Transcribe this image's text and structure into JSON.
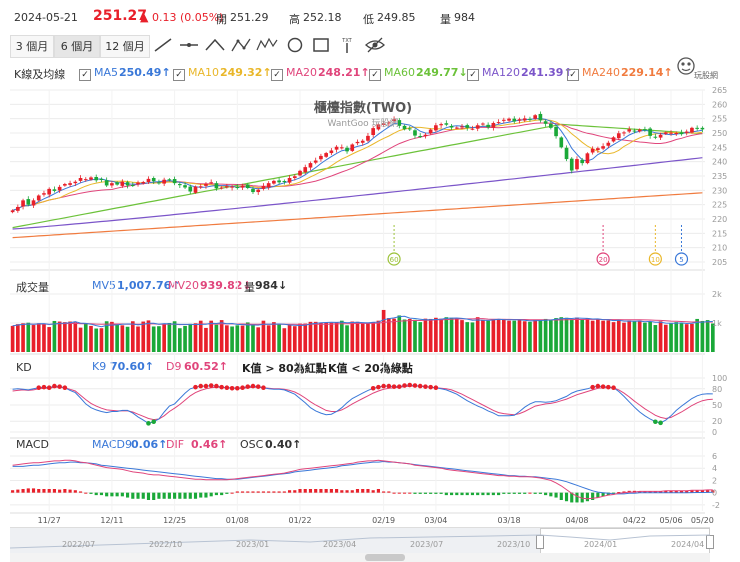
{
  "quote": {
    "date": "2024-05-21",
    "price": "251.27",
    "change": "▲ 0.13 (0.05%)",
    "open_label": "開",
    "open": "251.29",
    "high_label": "高",
    "high": "252.18",
    "low_label": "低",
    "low": "249.85",
    "vol_label": "量",
    "vol": "984"
  },
  "toolbar": {
    "ranges": [
      "3 個月",
      "6 個月",
      "12 個月"
    ],
    "active_range": "6 個月",
    "tools": [
      "line-tool-icon",
      "horizontal-line-icon",
      "angle-tool-icon",
      "abc-pattern-icon",
      "abcde-pattern-icon",
      "circle-tool-icon",
      "rectangle-tool-icon",
      "text-tool-icon",
      "hide-icon"
    ],
    "text_tool_caption": "TXT"
  },
  "ma_legend": {
    "title": "K線及均線",
    "items": [
      {
        "label": "MA5",
        "value": "250.49↑",
        "color": "#3a78d8"
      },
      {
        "label": "MA10",
        "value": "249.32↑",
        "color": "#e9b72a"
      },
      {
        "label": "MA20",
        "value": "248.21↑",
        "color": "#e0457b"
      },
      {
        "label": "MA60",
        "value": "249.77↓",
        "color": "#6cc23a"
      },
      {
        "label": "MA120",
        "value": "241.39↑",
        "color": "#7b55c9"
      },
      {
        "label": "MA240",
        "value": "229.14↑",
        "color": "#f07b3f"
      }
    ]
  },
  "volume_legend": {
    "title": "成交量",
    "items": [
      {
        "label": "MV5",
        "value": "1,007.76↑",
        "color": "#3a78d8"
      },
      {
        "label": "MV20",
        "value": "939.82↓",
        "color": "#e0457b"
      },
      {
        "label": "量",
        "value": "984↓",
        "color": "#333333"
      }
    ]
  },
  "kd_legend": {
    "title": "KD",
    "items": [
      {
        "label": "K9",
        "value": "70.60↑",
        "color": "#3a78d8"
      },
      {
        "label": "D9",
        "value": "60.52↑",
        "color": "#e0457b"
      }
    ],
    "note1": "K值 > 80為紅點",
    "note2": "K值 < 20為綠點"
  },
  "macd_legend": {
    "title": "MACD",
    "items": [
      {
        "label": "MACD9",
        "value": "0.06↑",
        "color": "#3a78d8"
      },
      {
        "label": "DIF",
        "value": "0.46↑",
        "color": "#e0457b"
      },
      {
        "label": "OSC",
        "value": "0.40↑",
        "color": "#333333"
      }
    ]
  },
  "watermark": {
    "title": "櫃檯指數(TWO)",
    "subtitle": "WantGoo 玩股網",
    "logo_text": "玩股網"
  },
  "markers": [
    "60",
    "20",
    "10",
    "5"
  ],
  "navigator": [
    "2022/07",
    "2022/10",
    "2023/01",
    "2023/04",
    "2023/07",
    "2023/10",
    "2024/01",
    "2024/04"
  ],
  "colors": {
    "up": "#e8202a",
    "down": "#1aa838",
    "grid": "#ececec",
    "axis": "#999999"
  },
  "chart_data": {
    "type": "candlestick",
    "x_labels": [
      "11/27",
      "12/11",
      "12/25",
      "01/08",
      "01/22",
      "02/19",
      "03/04",
      "03/18",
      "04/08",
      "04/22",
      "05/06",
      "05/20"
    ],
    "price_axis": {
      "ticks": [
        205,
        210,
        215,
        220,
        225,
        230,
        235,
        240,
        245,
        250,
        255,
        260,
        265
      ],
      "ylim": [
        205,
        265
      ]
    },
    "volume_axis": {
      "ticks": [
        "1k",
        "2k"
      ],
      "ylim": [
        0,
        2000
      ]
    },
    "kd_axis": {
      "ticks": [
        0,
        20,
        50,
        80,
        100
      ],
      "ylim": [
        0,
        100
      ]
    },
    "macd_axis": {
      "ticks": [
        -2,
        0,
        2,
        4,
        6
      ],
      "ylim": [
        -3,
        6
      ]
    },
    "closes": [
      223,
      224.2,
      226.5,
      225,
      226.5,
      228.2,
      229,
      230.5,
      229.8,
      231.2,
      232.2,
      232.5,
      233,
      234.3,
      233.9,
      234.5,
      233.5,
      233.8,
      231.7,
      232.5,
      232,
      233,
      231.7,
      231.7,
      232.7,
      232.9,
      234,
      233.2,
      232.5,
      233.7,
      233.5,
      232.5,
      231.8,
      231,
      229.6,
      231.3,
      231.4,
      232.3,
      232.8,
      230.7,
      231,
      231.4,
      231.3,
      230.8,
      231.6,
      230.8,
      229.4,
      230.2,
      231.5,
      232.5,
      233.3,
      232.8,
      233,
      234.3,
      234.9,
      236.8,
      238.1,
      239.5,
      240.4,
      242,
      243,
      243.9,
      245.2,
      245,
      243.6,
      246,
      246.9,
      247.3,
      249,
      251.7,
      253,
      253.3,
      253.7,
      254.8,
      252.5,
      251.3,
      251.4,
      249.1,
      248.8,
      249.4,
      251.2,
      252.7,
      253.1,
      252.9,
      251.9,
      251.9,
      252.3,
      251.8,
      251.5,
      252.7,
      253.3,
      252,
      253.5,
      253.8,
      254.6,
      255,
      254,
      254.8,
      255.1,
      254.8,
      256.2,
      254.4,
      253.2,
      251.8,
      248.9,
      245,
      240.9,
      236.9,
      240.9,
      239.5,
      242.9,
      244.5,
      244.7,
      245.4,
      246.6,
      248.5,
      249.9,
      250.2,
      251.3,
      250.7,
      251.2,
      251.1,
      249,
      248.4,
      249.4,
      250.2,
      250.1,
      250,
      249.6,
      250.5,
      251.8,
      251.5,
      251.27
    ],
    "volumes": [
      900,
      960,
      990,
      1010,
      930,
      990,
      970,
      860,
      1070,
      1050,
      1030,
      1050,
      1020,
      840,
      990,
      900,
      810,
      820,
      1060,
      1040,
      940,
      920,
      870,
      1060,
      880,
      1050,
      1090,
      880,
      890,
      980,
      1000,
      1060,
      820,
      900,
      970,
      990,
      1080,
      830,
      1080,
      940,
      1100,
      920,
      880,
      920,
      910,
      1020,
      930,
      850,
      1080,
      920,
      1030,
      950,
      820,
      930,
      890,
      980,
      980,
      1040,
      1040,
      1010,
      1020,
      1010,
      1030,
      1080,
      920,
      1050,
      1040,
      980,
      1020,
      1030,
      1080,
      1450,
      1170,
      1150,
      1260,
      1120,
      1140,
      1110,
      1030,
      1150,
      1140,
      1180,
      1150,
      1200,
      1180,
      1160,
      1100,
      1030,
      1020,
      1200,
      1110,
      1080,
      1130,
      1130,
      1140,
      1080,
      1080,
      1100,
      1060,
      1040,
      1120,
      1110,
      1140,
      1100,
      1170,
      1200,
      1180,
      1130,
      1190,
      1120,
      1170,
      1080,
      1140,
      1080,
      1090,
      1030,
      1120,
      1010,
      1080,
      1050,
      1080,
      1010,
      1050,
      930,
      1060,
      940,
      980,
      1030,
      1010,
      960,
      970,
      1140,
      1070,
      1100,
      984
    ],
    "k9": [
      79,
      80,
      79,
      78,
      80,
      82,
      83,
      82,
      85,
      84,
      82,
      77,
      73,
      63,
      52,
      45,
      41,
      38,
      36,
      38,
      38,
      40,
      40,
      35,
      28,
      22,
      16,
      19,
      24,
      37,
      48,
      52,
      62,
      72,
      80,
      83,
      85,
      85,
      86,
      85,
      83,
      82,
      81,
      81,
      82,
      84,
      85,
      84,
      82,
      80,
      79,
      79,
      78,
      74,
      70,
      62,
      54,
      45,
      39,
      35,
      32,
      33,
      38,
      45,
      54,
      62,
      67,
      72,
      77,
      81,
      83,
      85,
      85,
      84,
      84,
      86,
      87,
      86,
      85,
      84,
      83,
      82,
      80,
      78,
      74,
      70,
      64,
      58,
      53,
      48,
      44,
      39,
      35,
      30,
      30,
      30,
      31,
      38,
      46,
      52,
      56,
      56,
      55,
      56,
      58,
      62,
      66,
      72,
      76,
      78,
      80,
      83,
      85,
      84,
      83,
      82,
      75,
      66,
      56,
      46,
      37,
      30,
      24,
      19,
      17,
      22,
      30,
      40,
      48,
      55,
      62,
      67,
      70,
      71,
      70.6
    ],
    "d9": [
      76,
      77,
      78,
      77,
      78,
      80,
      81,
      81,
      83,
      83,
      82,
      79,
      76,
      68,
      60,
      53,
      48,
      44,
      41,
      40,
      39,
      39,
      39,
      37,
      33,
      29,
      25,
      23,
      24,
      30,
      38,
      44,
      51,
      59,
      67,
      73,
      77,
      80,
      82,
      83,
      83,
      82,
      82,
      81,
      81,
      82,
      83,
      83,
      82,
      81,
      80,
      80,
      79,
      77,
      74,
      69,
      63,
      56,
      50,
      45,
      40,
      38,
      38,
      41,
      46,
      52,
      57,
      62,
      67,
      72,
      76,
      79,
      81,
      82,
      83,
      84,
      85,
      85,
      85,
      84,
      83,
      82,
      81,
      80,
      78,
      74,
      70,
      65,
      60,
      55,
      50,
      45,
      40,
      36,
      34,
      33,
      32,
      34,
      38,
      43,
      48,
      50,
      52,
      53,
      55,
      58,
      61,
      65,
      69,
      72,
      75,
      78,
      81,
      82,
      82,
      82,
      78,
      72,
      65,
      57,
      50,
      43,
      37,
      31,
      27,
      25,
      27,
      32,
      37,
      43,
      49,
      54,
      58,
      60,
      60.52
    ],
    "macd9": [
      4.3,
      4.3,
      4.3,
      4.4,
      4.5,
      4.5,
      4.6,
      4.7,
      4.8,
      4.9,
      4.9,
      5,
      5,
      4.9,
      4.9,
      4.8,
      4.7,
      4.5,
      4.4,
      4.3,
      4.2,
      4.1,
      4,
      3.9,
      3.8,
      3.7,
      3.6,
      3.5,
      3.4,
      3.3,
      3.2,
      3.1,
      3,
      2.9,
      2.8,
      2.7,
      2.6,
      2.5,
      2.4,
      2.3,
      2.3,
      2.2,
      2.2,
      2.2,
      2.3,
      2.4,
      2.5,
      2.6,
      2.7,
      2.8,
      2.9,
      3,
      3.1,
      3.2,
      3.4,
      3.5,
      3.6,
      3.7,
      3.8,
      3.9,
      4,
      4.1,
      4.2,
      4.4,
      4.5,
      4.6,
      4.7,
      4.8,
      4.9,
      5,
      5,
      5.1,
      5,
      5,
      4.9,
      4.8,
      4.7,
      4.6,
      4.5,
      4.4,
      4.3,
      4.2,
      4.1,
      4,
      3.9,
      3.8,
      3.7,
      3.6,
      3.5,
      3.4,
      3.3,
      3.2,
      3.1,
      3,
      2.9,
      2.8,
      2.8,
      2.7,
      2.7,
      2.6,
      2.6,
      2.5,
      2.4,
      2.3,
      2.2,
      2,
      1.8,
      1.5,
      1.2,
      0.9,
      0.6,
      0.3,
      0.1,
      0,
      -0.1,
      -0.2,
      -0.2,
      -0.2,
      -0.1,
      -0.1,
      0,
      0,
      0,
      0,
      0,
      0,
      0,
      0,
      0,
      0,
      0.01,
      0.02,
      0.03,
      0.05,
      0.06
    ],
    "dif": [
      4.5,
      4.6,
      4.7,
      4.8,
      4.9,
      4.9,
      5,
      5.1,
      5.2,
      5.2,
      5.3,
      5.3,
      5.2,
      5,
      4.9,
      4.7,
      4.5,
      4.3,
      4.1,
      4,
      3.9,
      3.8,
      3.6,
      3.4,
      3.3,
      3.2,
      3,
      2.9,
      2.9,
      2.8,
      2.7,
      2.6,
      2.5,
      2.4,
      2.3,
      2.2,
      2.2,
      2.1,
      2.1,
      2.1,
      2.1,
      2.1,
      2.2,
      2.3,
      2.4,
      2.5,
      2.6,
      2.7,
      2.8,
      2.9,
      3,
      3.1,
      3.2,
      3.4,
      3.6,
      3.8,
      3.9,
      4,
      4.1,
      4.2,
      4.3,
      4.4,
      4.5,
      4.6,
      4.7,
      4.8,
      5,
      5.1,
      5.2,
      5.2,
      5.3,
      5.2,
      5.1,
      5,
      4.9,
      4.8,
      4.7,
      4.5,
      4.4,
      4.3,
      4.2,
      4.1,
      4,
      3.8,
      3.7,
      3.6,
      3.5,
      3.4,
      3.3,
      3.2,
      3.1,
      3,
      2.9,
      2.8,
      2.8,
      2.7,
      2.7,
      2.6,
      2.6,
      2.6,
      2.5,
      2.4,
      2.2,
      2,
      1.6,
      1.1,
      0.5,
      -0.1,
      -0.6,
      -0.9,
      -1,
      -0.9,
      -0.8,
      -0.6,
      -0.4,
      -0.3,
      -0.1,
      0,
      0.1,
      0.1,
      0.2,
      0.2,
      0.2,
      0.2,
      0.2,
      0.3,
      0.3,
      0.3,
      0.3,
      0.3,
      0.4,
      0.4,
      0.4,
      0.45,
      0.46
    ],
    "osc": [
      0.4,
      0.5,
      0.6,
      0.7,
      0.7,
      0.6,
      0.6,
      0.6,
      0.6,
      0.5,
      0.6,
      0.5,
      0.4,
      0.2,
      0,
      -0.2,
      -0.4,
      -0.4,
      -0.6,
      -0.6,
      -0.6,
      -0.6,
      -0.8,
      -1,
      -1,
      -1,
      -1.2,
      -1.2,
      -1,
      -1,
      -1,
      -1,
      -1,
      -1,
      -1,
      -1,
      -0.8,
      -0.8,
      -0.6,
      -0.4,
      -0.4,
      -0.2,
      0,
      0.2,
      0.2,
      0.2,
      0.2,
      0.2,
      0.2,
      0.2,
      0.2,
      0.2,
      0.2,
      0.4,
      0.4,
      0.6,
      0.6,
      0.6,
      0.6,
      0.6,
      0.6,
      0.6,
      0.6,
      0.4,
      0.4,
      0.4,
      0.6,
      0.6,
      0.6,
      0.4,
      0.6,
      0.2,
      0.2,
      0,
      0,
      0,
      0,
      -0.2,
      -0.2,
      -0.2,
      -0.2,
      -0.2,
      -0.2,
      -0.4,
      -0.4,
      -0.4,
      -0.4,
      -0.4,
      -0.4,
      -0.4,
      -0.4,
      -0.4,
      -0.4,
      -0.4,
      -0.2,
      -0.2,
      -0.2,
      -0.2,
      -0.2,
      0,
      -0.2,
      -0.2,
      -0.4,
      -0.6,
      -0.8,
      -1.2,
      -1.4,
      -1.6,
      -1.6,
      -1.6,
      -1.4,
      -1.2,
      -0.8,
      -0.6,
      -0.4,
      -0.2,
      0.1,
      0.2,
      0.3,
      0.3,
      0.2,
      0.2,
      0.2,
      0.2,
      0.2,
      0.3,
      0.3,
      0.3,
      0.3,
      0.3,
      0.4,
      0.4,
      0.4,
      0.4,
      0.4
    ]
  }
}
